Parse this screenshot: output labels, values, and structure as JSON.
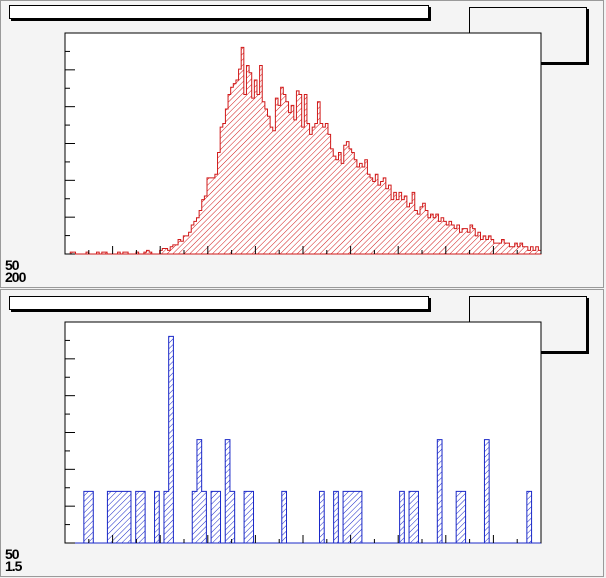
{
  "pads": [
    {
      "title": "",
      "stats": "",
      "corner_labels": [
        "50",
        "200"
      ],
      "fill_color": "#d11a1a",
      "hist_bins": [
        0,
        0,
        1,
        1,
        0,
        0,
        0,
        0,
        1,
        0,
        0,
        0,
        1,
        0,
        1,
        1,
        0,
        0,
        0,
        0,
        1,
        0,
        1,
        1,
        0,
        0,
        0,
        1,
        0,
        0,
        1,
        2,
        1,
        0,
        0,
        0,
        2,
        3,
        3,
        2,
        4,
        5,
        5,
        8,
        7,
        10,
        10,
        12,
        16,
        18,
        20,
        24,
        30,
        32,
        42,
        42,
        42,
        44,
        56,
        70,
        72,
        80,
        88,
        92,
        94,
        96,
        102,
        114,
        88,
        104,
        100,
        86,
        96,
        88,
        104,
        84,
        80,
        76,
        70,
        68,
        86,
        82,
        92,
        88,
        84,
        78,
        82,
        74,
        90,
        88,
        70,
        88,
        72,
        66,
        70,
        72,
        84,
        72,
        70,
        72,
        66,
        58,
        54,
        52,
        56,
        50,
        60,
        62,
        58,
        56,
        52,
        48,
        50,
        48,
        52,
        44,
        42,
        40,
        44,
        38,
        40,
        42,
        36,
        38,
        30,
        34,
        30,
        34,
        30,
        32,
        26,
        28,
        34,
        24,
        22,
        26,
        28,
        24,
        20,
        22,
        20,
        22,
        18,
        20,
        18,
        16,
        18,
        16,
        14,
        16,
        12,
        14,
        14,
        12,
        16,
        14,
        10,
        12,
        8,
        10,
        8,
        10,
        8,
        6,
        6,
        6,
        8,
        6,
        6,
        4,
        4,
        6,
        4,
        6,
        4,
        4,
        2,
        4,
        2,
        4,
        2
      ]
    },
    {
      "title": "",
      "stats": "",
      "corner_labels": [
        "50",
        "1.5"
      ],
      "fill_color": "#1a28c8",
      "hist_bins": [
        0,
        0,
        0,
        0,
        1,
        1,
        0,
        0,
        0,
        1,
        1,
        1,
        1,
        1,
        0,
        1,
        1,
        0,
        0,
        1,
        0,
        1,
        4,
        0,
        0,
        0,
        0,
        1,
        2,
        1,
        0,
        1,
        1,
        0,
        2,
        1,
        0,
        0,
        1,
        1,
        0,
        0,
        0,
        0,
        0,
        0,
        1,
        0,
        0,
        0,
        0,
        0,
        0,
        0,
        1,
        0,
        0,
        1,
        0,
        1,
        1,
        1,
        1,
        0,
        0,
        0,
        0,
        0,
        0,
        0,
        0,
        1,
        0,
        1,
        1,
        0,
        0,
        0,
        0,
        2,
        0,
        0,
        0,
        1,
        1,
        0,
        0,
        0,
        0,
        2,
        0,
        0,
        0,
        0,
        0,
        0,
        0,
        0,
        1,
        0,
        0
      ]
    }
  ]
}
